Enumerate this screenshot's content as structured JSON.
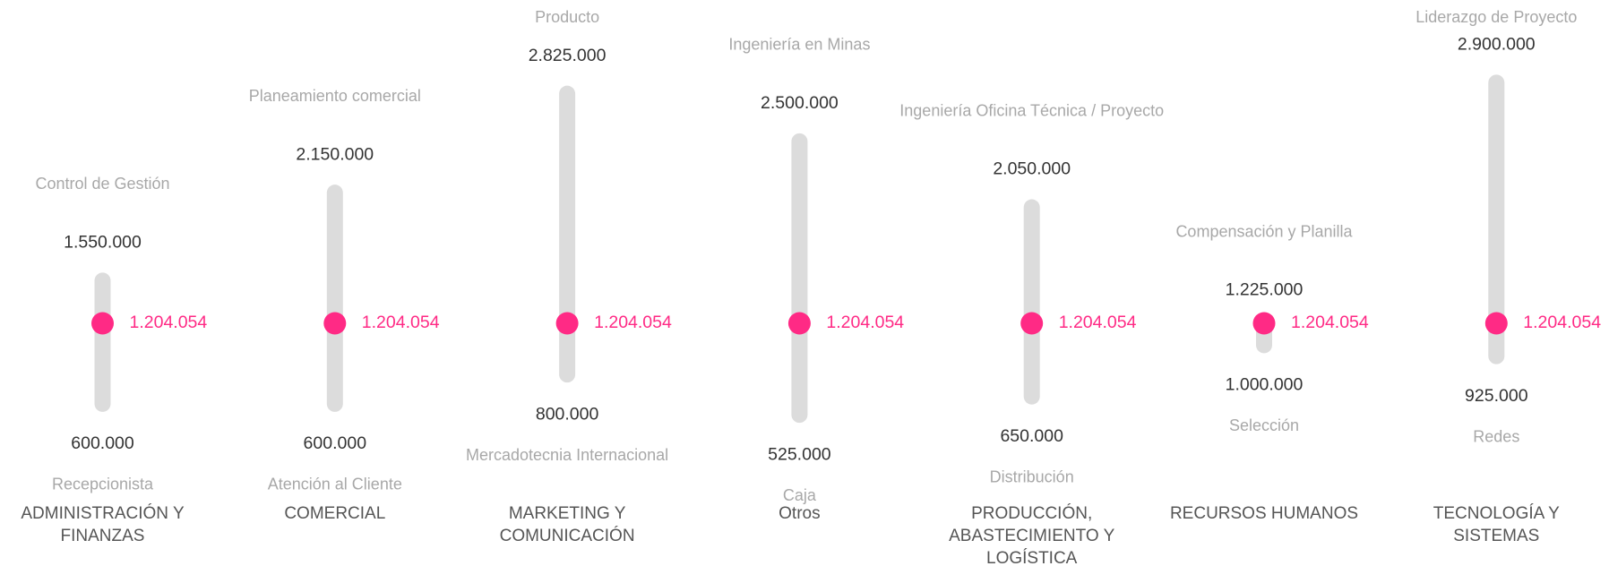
{
  "chart_data": {
    "type": "range",
    "marker": {
      "value": 1204054,
      "label": "1.204.054",
      "color": "#ff2a85"
    },
    "bar_color": "#dcdcdc",
    "ranges": [
      {
        "category": "ADMINISTRACIÓN Y FINANZAS",
        "max": 1550000,
        "max_label": "1.550.000",
        "max_role": "Control de Gestión",
        "min": 600000,
        "min_label": "600.000",
        "min_role": "Recepcionista"
      },
      {
        "category": "COMERCIAL",
        "max": 2150000,
        "max_label": "2.150.000",
        "max_role": "Planeamiento comercial",
        "min": 600000,
        "min_label": "600.000",
        "min_role": "Atención al Cliente"
      },
      {
        "category": "MARKETING Y COMUNICACIÓN",
        "max": 2825000,
        "max_label": "2.825.000",
        "max_role": "Producto",
        "min": 800000,
        "min_label": "800.000",
        "min_role": "Mercadotecnia Internacional"
      },
      {
        "category": "Otros",
        "max": 2500000,
        "max_label": "2.500.000",
        "max_role": "Ingeniería en Minas",
        "min": 525000,
        "min_label": "525.000",
        "min_role": "Caja"
      },
      {
        "category": "PRODUCCIÓN, ABASTECIMIENTO Y LOGÍSTICA",
        "max": 2050000,
        "max_label": "2.050.000",
        "max_role": "Ingeniería Oficina Técnica / Proyecto",
        "min": 650000,
        "min_label": "650.000",
        "min_role": "Distribución"
      },
      {
        "category": "RECURSOS HUMANOS",
        "max": 1225000,
        "max_label": "1.225.000",
        "max_role": "Compensación y Planilla",
        "min": 1000000,
        "min_label": "1.000.000",
        "min_role": "Selección"
      },
      {
        "category": "TECNOLOGÍA Y SISTEMAS",
        "max": 2900000,
        "max_label": "2.900.000",
        "max_role": "Liderazgo de Proyecto",
        "min": 925000,
        "min_label": "925.000",
        "min_role": "Redes"
      }
    ]
  }
}
